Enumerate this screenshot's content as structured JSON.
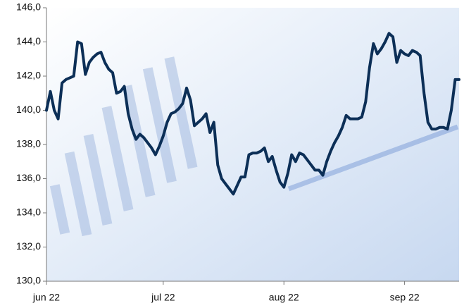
{
  "chart_data": {
    "type": "line",
    "categories": [
      "jun 22",
      null,
      null,
      null,
      null,
      null,
      null,
      null,
      null,
      null,
      null,
      null,
      null,
      null,
      null,
      null,
      null,
      null,
      null,
      null,
      null,
      null,
      null,
      null,
      null,
      null,
      null,
      null,
      null,
      null,
      "jul 22",
      null,
      null,
      null,
      null,
      null,
      null,
      null,
      null,
      null,
      null,
      null,
      null,
      null,
      null,
      null,
      null,
      null,
      null,
      null,
      null,
      null,
      null,
      null,
      null,
      null,
      null,
      null,
      null,
      null,
      null,
      "aug 22",
      null,
      null,
      null,
      null,
      null,
      null,
      null,
      null,
      null,
      null,
      null,
      null,
      null,
      null,
      null,
      null,
      null,
      null,
      null,
      null,
      null,
      null,
      null,
      null,
      null,
      null,
      null,
      null,
      null,
      null,
      "sep 22",
      null,
      null,
      null,
      null,
      null,
      null,
      null,
      null,
      null,
      null,
      null,
      null,
      null,
      null
    ],
    "values": [
      140.0,
      141.1,
      140.0,
      139.5,
      141.6,
      141.8,
      141.9,
      142.0,
      144.0,
      143.9,
      142.1,
      142.8,
      143.1,
      143.3,
      143.4,
      142.8,
      142.4,
      142.2,
      141.0,
      141.1,
      141.4,
      139.8,
      138.9,
      138.3,
      138.6,
      138.4,
      138.1,
      137.8,
      137.4,
      137.9,
      138.5,
      139.3,
      139.8,
      139.9,
      140.1,
      140.4,
      141.3,
      140.6,
      139.1,
      139.3,
      139.5,
      139.8,
      138.7,
      139.3,
      136.8,
      136.0,
      135.7,
      135.4,
      135.1,
      135.6,
      136.1,
      136.1,
      137.4,
      137.5,
      137.5,
      137.6,
      137.8,
      137.0,
      137.3,
      136.5,
      135.8,
      135.5,
      136.3,
      137.4,
      137.0,
      137.5,
      137.4,
      137.1,
      136.8,
      136.5,
      136.5,
      136.2,
      137.0,
      137.6,
      138.1,
      138.5,
      139.0,
      139.7,
      139.5,
      139.5,
      139.5,
      139.6,
      140.5,
      142.5,
      143.9,
      143.3,
      143.6,
      144.0,
      144.5,
      144.3,
      142.8,
      143.5,
      143.3,
      143.2,
      143.5,
      143.4,
      143.2,
      141.0,
      139.3,
      138.9,
      138.9,
      139.0,
      139.0,
      138.9,
      140.0,
      141.8,
      141.8
    ],
    "color": "#0c2f57",
    "ylim": [
      130,
      146
    ],
    "yticks": [
      {
        "value": 130,
        "label": "130,0"
      },
      {
        "value": 132,
        "label": "132,0"
      },
      {
        "value": 134,
        "label": "134,0"
      },
      {
        "value": 136,
        "label": "136,0"
      },
      {
        "value": 138,
        "label": "138,0"
      },
      {
        "value": 140,
        "label": "140,0"
      },
      {
        "value": 142,
        "label": "142,0"
      },
      {
        "value": 144,
        "label": "144,0"
      },
      {
        "value": 146,
        "label": "146,0"
      }
    ],
    "grid": false
  }
}
